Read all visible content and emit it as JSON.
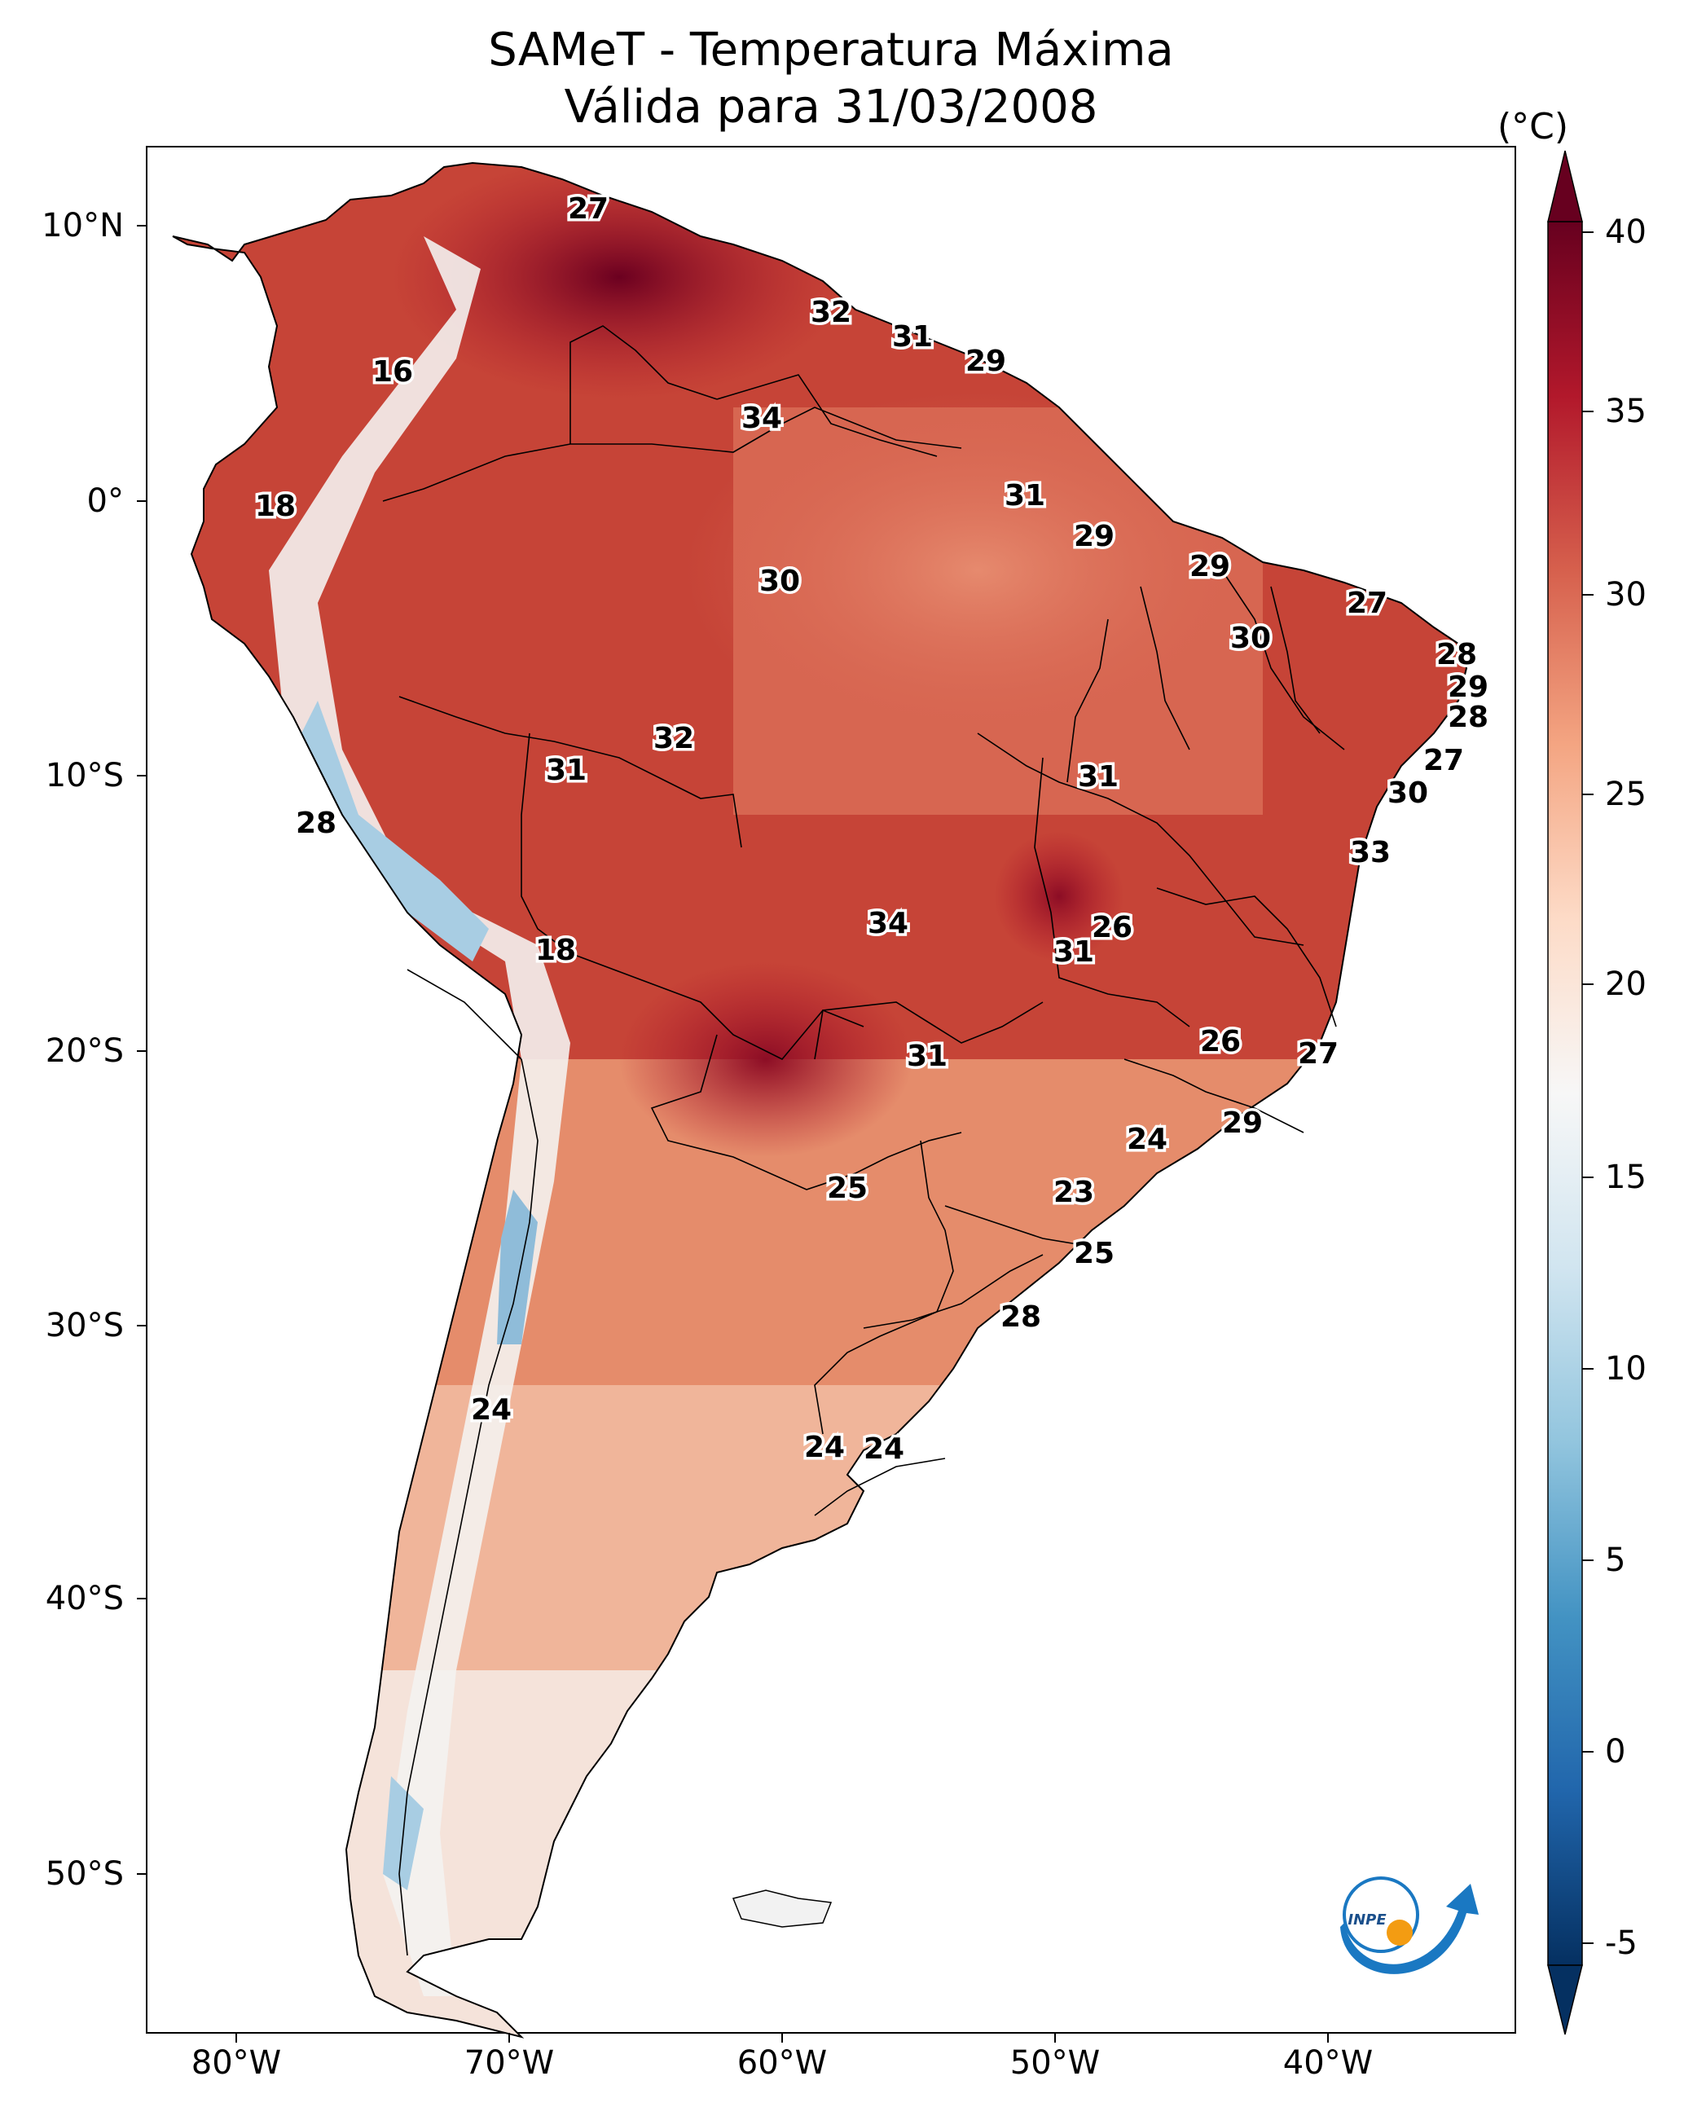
{
  "title_line1": "SAMeT - Temperatura Máxima",
  "title_line2": "Válida para 31/03/2008",
  "colorbar": {
    "unit": "(°C)",
    "ticks": [
      "40",
      "35",
      "30",
      "25",
      "20",
      "15",
      "10",
      "5",
      "0",
      "-5"
    ],
    "range": [
      -7,
      41
    ],
    "colors": [
      "#053061",
      "#2166ac",
      "#4393c3",
      "#92c5de",
      "#d1e5f0",
      "#f7f7f7",
      "#fddbc7",
      "#f4a582",
      "#d6604d",
      "#b2182b",
      "#67001f"
    ]
  },
  "axes": {
    "lat_labels": [
      "10°N",
      "0°",
      "10°S",
      "20°S",
      "30°S",
      "40°S",
      "50°S"
    ],
    "lon_labels": [
      "80°W",
      "70°W",
      "60°W",
      "50°W",
      "40°W"
    ]
  },
  "map_labels": [
    "27",
    "32",
    "31",
    "29",
    "16",
    "34",
    "18",
    "31",
    "29",
    "30",
    "29",
    "27",
    "30",
    "28",
    "29",
    "28",
    "32",
    "31",
    "31",
    "27",
    "28",
    "30",
    "33",
    "18",
    "34",
    "26",
    "31",
    "26",
    "27",
    "31",
    "29",
    "24",
    "25",
    "23",
    "25",
    "28",
    "24",
    "24",
    "24"
  ],
  "logo_text": "INPE"
}
